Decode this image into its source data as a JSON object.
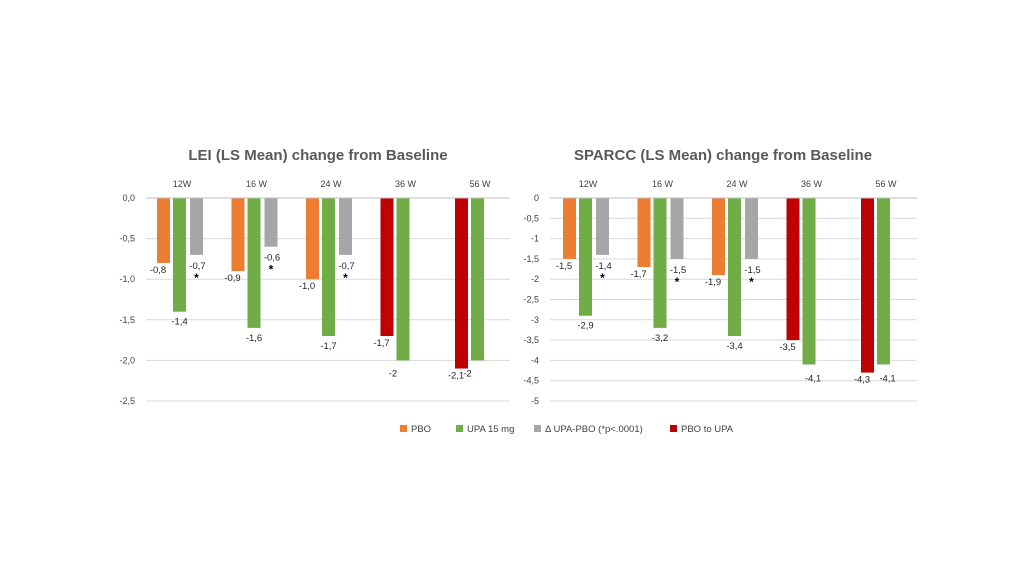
{
  "colors": {
    "PBO": "#ED7D31",
    "UPA 15 mg": "#70AD47",
    "Δ UPA-PBO (*p<.0001)": "#A6A6A6",
    "PBO to UPA": "#C00000"
  },
  "legend": [
    "PBO",
    "UPA 15 mg",
    "Δ UPA-PBO (*p<.0001)",
    "PBO to UPA"
  ],
  "chart_data": [
    {
      "type": "bar",
      "title": "LEI (LS Mean) change from Baseline",
      "categories": [
        "12W",
        "16 W",
        "24 W",
        "36 W",
        "56 W"
      ],
      "ylim": [
        -2.5,
        0
      ],
      "yticks": [
        "0,0",
        "-0,5",
        "-1,0",
        "-1,5",
        "-2,0",
        "-2,5"
      ],
      "ytick_values": [
        0,
        -0.5,
        -1.0,
        -1.5,
        -2.0,
        -2.5
      ],
      "series": [
        {
          "name": "PBO",
          "values": [
            -0.8,
            -0.9,
            -1.0,
            null,
            null
          ],
          "labels": [
            "-0,8",
            "-0,9",
            "-1,0",
            "",
            ""
          ]
        },
        {
          "name": "UPA 15 mg",
          "values": [
            -1.4,
            -1.6,
            -1.7,
            -2.0,
            -2.0
          ],
          "labels": [
            "-1,4",
            "-1,6",
            "-1,7",
            "-2",
            "-2"
          ]
        },
        {
          "name": "Δ UPA-PBO (*p<.0001)",
          "values": [
            -0.7,
            -0.6,
            -0.7,
            null,
            null
          ],
          "labels": [
            "-0,7",
            "-0,6",
            "-0,7",
            "",
            ""
          ],
          "significant": [
            true,
            true,
            true,
            false,
            false
          ]
        },
        {
          "name": "PBO to UPA",
          "values": [
            null,
            null,
            null,
            -1.7,
            -2.1
          ],
          "labels": [
            "",
            "",
            "",
            "-1,7",
            "-2,1"
          ]
        }
      ]
    },
    {
      "type": "bar",
      "title": "SPARCC (LS Mean) change from Baseline",
      "categories": [
        "12W",
        "16 W",
        "24 W",
        "36 W",
        "56 W"
      ],
      "ylim": [
        -5,
        0
      ],
      "yticks": [
        "0",
        "-0,5",
        "-1",
        "-1,5",
        "-2",
        "-2,5",
        "-3",
        "-3,5",
        "-4",
        "-4,5",
        "-5"
      ],
      "ytick_values": [
        0,
        -0.5,
        -1,
        -1.5,
        -2,
        -2.5,
        -3,
        -3.5,
        -4,
        -4.5,
        -5
      ],
      "series": [
        {
          "name": "PBO",
          "values": [
            -1.5,
            -1.7,
            -1.9,
            null,
            null
          ],
          "labels": [
            "-1,5",
            "-1,7",
            "-1,9",
            "",
            ""
          ]
        },
        {
          "name": "UPA 15 mg",
          "values": [
            -2.9,
            -3.2,
            -3.4,
            -4.1,
            -4.1
          ],
          "labels": [
            "-2,9",
            "-3,2",
            "-3,4",
            "-4,1",
            "-4,1"
          ]
        },
        {
          "name": "Δ UPA-PBO (*p<.0001)",
          "values": [
            -1.4,
            -1.5,
            -1.5,
            null,
            null
          ],
          "labels": [
            "-1,4",
            "-1,5",
            "-1,5",
            "",
            ""
          ],
          "significant": [
            true,
            true,
            true,
            false,
            false
          ]
        },
        {
          "name": "PBO to UPA",
          "values": [
            null,
            null,
            null,
            -3.5,
            -4.3
          ],
          "labels": [
            "",
            "",
            "",
            "-3,5",
            "-4,3"
          ]
        }
      ]
    }
  ]
}
